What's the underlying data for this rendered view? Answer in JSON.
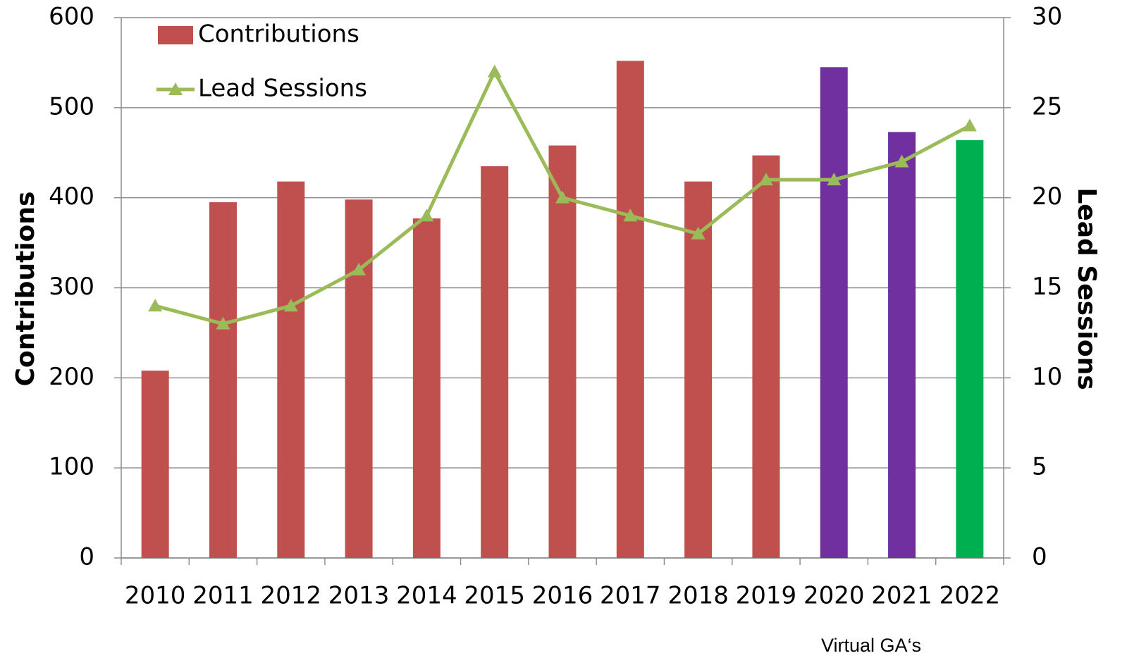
{
  "chart_data": {
    "type": "bar_line",
    "categories": [
      "2010",
      "2011",
      "2012",
      "2013",
      "2014",
      "2015",
      "2016",
      "2017",
      "2018",
      "2019",
      "2020",
      "2021",
      "2022"
    ],
    "series": [
      {
        "name": "Contributions",
        "type": "bar",
        "color": "#c0504d",
        "colors": [
          "#c0504d",
          "#c0504d",
          "#c0504d",
          "#c0504d",
          "#c0504d",
          "#c0504d",
          "#c0504d",
          "#c0504d",
          "#c0504d",
          "#c0504d",
          "#7030a0",
          "#7030a0",
          "#00b050"
        ],
        "values": [
          208,
          395,
          418,
          398,
          377,
          435,
          458,
          552,
          418,
          447,
          545,
          473,
          464
        ]
      },
      {
        "name": "Lead Sessions",
        "type": "line",
        "axis": "y2",
        "color": "#9bbb59",
        "values": [
          14,
          13,
          14,
          16,
          19,
          27,
          20,
          19,
          18,
          21,
          21,
          22,
          24
        ]
      }
    ],
    "ylabel": "Contributions",
    "y2label": "Lead Sessions",
    "ylim": [
      0,
      600
    ],
    "yticks": [
      0,
      100,
      200,
      300,
      400,
      500,
      600
    ],
    "y2lim": [
      0,
      30
    ],
    "y2ticks": [
      0,
      5,
      10,
      15,
      20,
      25,
      30
    ],
    "annotation": "Virtual GA‘s",
    "grid": true,
    "legend": "upper left"
  }
}
